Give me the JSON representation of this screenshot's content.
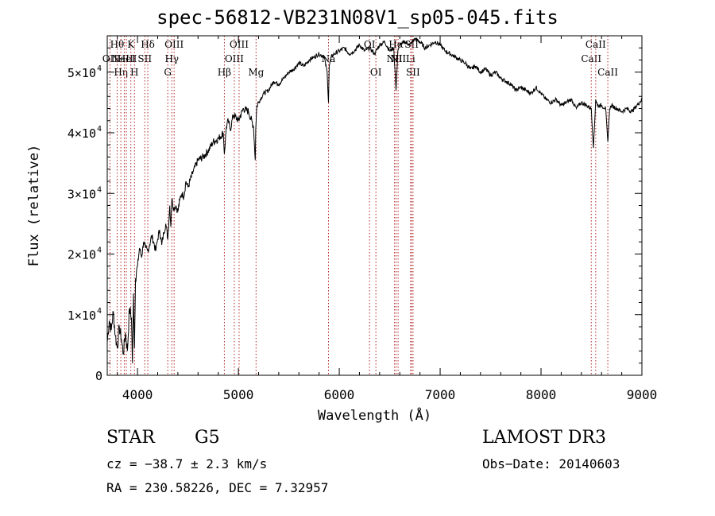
{
  "chart_data": {
    "type": "line",
    "title": "spec-56812-VB231N08V1_sp05-045.fits",
    "xlabel": "Wavelength (Å)",
    "ylabel": "Flux (relative)",
    "xlim": [
      3700,
      9000
    ],
    "ylim": [
      0,
      56000
    ],
    "x_ticks": [
      {
        "value": 4000,
        "label": "4000"
      },
      {
        "value": 5000,
        "label": "5000"
      },
      {
        "value": 6000,
        "label": "6000"
      },
      {
        "value": 7000,
        "label": "7000"
      },
      {
        "value": 8000,
        "label": "8000"
      },
      {
        "value": 9000,
        "label": "9000"
      }
    ],
    "y_ticks": [
      {
        "value": 0,
        "mantissa": "0",
        "exp": ""
      },
      {
        "value": 10000,
        "mantissa": "1×10",
        "exp": "4"
      },
      {
        "value": 20000,
        "mantissa": "2×10",
        "exp": "4"
      },
      {
        "value": 30000,
        "mantissa": "3×10",
        "exp": "4"
      },
      {
        "value": 40000,
        "mantissa": "4×10",
        "exp": "4"
      },
      {
        "value": 50000,
        "mantissa": "5×10",
        "exp": "4"
      }
    ],
    "series": [
      {
        "name": "spectrum",
        "x": [
          3700,
          3720,
          3740,
          3760,
          3780,
          3800,
          3820,
          3840,
          3860,
          3880,
          3900,
          3920,
          3940,
          3950,
          3960,
          3970,
          3980,
          4000,
          4020,
          4040,
          4060,
          4080,
          4100,
          4120,
          4140,
          4160,
          4180,
          4200,
          4220,
          4240,
          4260,
          4280,
          4300,
          4320,
          4330,
          4340,
          4360,
          4380,
          4400,
          4420,
          4440,
          4460,
          4480,
          4500,
          4550,
          4600,
          4650,
          4700,
          4750,
          4800,
          4850,
          4861,
          4880,
          4900,
          4920,
          4950,
          5000,
          5050,
          5100,
          5150,
          5167,
          5172,
          5183,
          5200,
          5250,
          5300,
          5350,
          5400,
          5450,
          5500,
          5550,
          5600,
          5650,
          5700,
          5750,
          5800,
          5850,
          5880,
          5893,
          5900,
          5920,
          5950,
          6000,
          6050,
          6100,
          6150,
          6200,
          6250,
          6300,
          6350,
          6400,
          6450,
          6500,
          6540,
          6563,
          6580,
          6600,
          6650,
          6700,
          6750,
          6800,
          6850,
          6900,
          6950,
          7000,
          7050,
          7100,
          7150,
          7200,
          7250,
          7300,
          7350,
          7400,
          7450,
          7500,
          7550,
          7600,
          7650,
          7700,
          7750,
          7800,
          7850,
          7900,
          7950,
          8000,
          8050,
          8100,
          8150,
          8200,
          8250,
          8300,
          8350,
          8400,
          8450,
          8498,
          8520,
          8542,
          8560,
          8600,
          8640,
          8662,
          8680,
          8700,
          8750,
          8800,
          8850,
          8900,
          8950,
          9000
        ],
        "values": [
          5500,
          9000,
          7500,
          10500,
          6500,
          4500,
          8000,
          6000,
          3500,
          7000,
          4000,
          11000,
          9500,
          2000,
          13500,
          4500,
          16000,
          18000,
          21000,
          19500,
          22000,
          21000,
          20500,
          21500,
          23000,
          22000,
          20500,
          22500,
          24000,
          21500,
          23500,
          25000,
          22500,
          28000,
          24500,
          29000,
          27500,
          28000,
          27000,
          29000,
          30000,
          29500,
          32000,
          31000,
          33500,
          35500,
          36000,
          37000,
          38500,
          39000,
          40000,
          36500,
          41000,
          42000,
          40500,
          43000,
          42000,
          44000,
          43500,
          41000,
          35500,
          40500,
          44500,
          45000,
          46500,
          47000,
          48500,
          48000,
          49000,
          50000,
          50500,
          51500,
          51000,
          52000,
          52500,
          53000,
          52500,
          50000,
          45000,
          51000,
          52500,
          53000,
          53500,
          54000,
          53000,
          53500,
          54500,
          53500,
          54000,
          53000,
          54500,
          55000,
          53500,
          54000,
          47000,
          53500,
          54500,
          55000,
          54500,
          55500,
          55000,
          54000,
          54500,
          55000,
          54500,
          53500,
          53000,
          52500,
          52000,
          51500,
          50500,
          51000,
          50000,
          50500,
          49500,
          50000,
          49000,
          48500,
          48000,
          47000,
          47500,
          47000,
          46500,
          47500,
          46500,
          45500,
          45000,
          45500,
          44500,
          45000,
          45500,
          44000,
          45000,
          44500,
          44000,
          37500,
          45500,
          44500,
          44500,
          44000,
          38500,
          44000,
          44500,
          44000,
          43500,
          44000,
          43500,
          44500,
          45500
        ]
      }
    ],
    "lines": [
      {
        "wave": 3727,
        "label": "OII",
        "row": 2
      },
      {
        "wave": 3798,
        "label": "Hθ",
        "row": 1
      },
      {
        "wave": 3835,
        "label": "Hη",
        "row": 3
      },
      {
        "wave": 3869,
        "label": "NeIII",
        "row": 2
      },
      {
        "wave": 3889,
        "label": "HeI",
        "row": 2
      },
      {
        "wave": 3934,
        "label": "K",
        "row": 1
      },
      {
        "wave": 3970,
        "label": "H",
        "row": 3
      },
      {
        "wave": 4072,
        "label": "SII",
        "row": 2
      },
      {
        "wave": 4102,
        "label": "Hδ",
        "row": 1
      },
      {
        "wave": 4300,
        "label": "G",
        "row": 3
      },
      {
        "wave": 4340,
        "label": "Hγ",
        "row": 2
      },
      {
        "wave": 4363,
        "label": "OIII",
        "row": 1
      },
      {
        "wave": 4861,
        "label": "Hβ",
        "row": 3
      },
      {
        "wave": 4959,
        "label": "OIII",
        "row": 2
      },
      {
        "wave": 5007,
        "label": "OIII",
        "row": 1
      },
      {
        "wave": 5175,
        "label": "Mg",
        "row": 3
      },
      {
        "wave": 5893,
        "label": "Na",
        "row": 2
      },
      {
        "wave": 6300,
        "label": "OI",
        "row": 1
      },
      {
        "wave": 6363,
        "label": "OI",
        "row": 3
      },
      {
        "wave": 6548,
        "label": "NII",
        "row": 2
      },
      {
        "wave": 6563,
        "label": "Hα",
        "row": 1
      },
      {
        "wave": 6583,
        "label": "NII",
        "row": 2
      },
      {
        "wave": 6707,
        "label": "Li",
        "row": 2
      },
      {
        "wave": 6717,
        "label": "SII",
        "row": 1
      },
      {
        "wave": 6731,
        "label": "SII",
        "row": 3
      },
      {
        "wave": 8498,
        "label": "CaII",
        "row": 2
      },
      {
        "wave": 8542,
        "label": "CaII",
        "row": 1
      },
      {
        "wave": 8662,
        "label": "CaII",
        "row": 3
      }
    ]
  },
  "info": {
    "class": "STAR",
    "subclass": "G5",
    "survey": "LAMOST DR3",
    "cz": "cz = −38.7 ± 2.3 km/s",
    "obs_date": "Obs−Date: 20140603",
    "ra_dec": "RA = 230.58226, DEC =    7.32957"
  }
}
